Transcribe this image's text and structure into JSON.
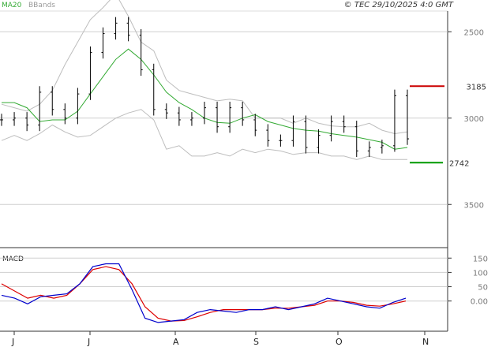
{
  "header": {
    "legend": [
      {
        "label": "MA20",
        "color": "#33aa33"
      },
      {
        "label": "BBands",
        "color": "#bdbdbd"
      }
    ],
    "copyright": "© TEC 29/10/2025 4:0 GMT"
  },
  "colors": {
    "price": "#000000",
    "ma20": "#33aa33",
    "bbands": "#bdbdbd",
    "resistance": "#cc0000",
    "support": "#009900",
    "macd": "#0000cc",
    "signal": "#dd0000",
    "axis": "#333333",
    "grid": "#cfcfcf"
  },
  "price_panel": {
    "yticks": [
      "3500",
      "3000",
      "2500"
    ],
    "resistance_label": "3185",
    "support_label": "2742"
  },
  "macd_panel": {
    "title": "MACD",
    "yticks": [
      "150",
      "100",
      "50",
      "0.00"
    ]
  },
  "months": [
    "J",
    "J",
    "A",
    "S",
    "O",
    "N"
  ],
  "chart_data": [
    {
      "type": "line",
      "title": "",
      "xlabel": "",
      "ylabel": "",
      "ylim": [
        2250,
        3620
      ],
      "x_labels": [
        "J",
        "J",
        "A",
        "S",
        "O",
        "N"
      ],
      "yticks": [
        2500,
        3000,
        3500
      ],
      "grid": true,
      "legend": [
        "MA20",
        "BBands"
      ],
      "levels": [
        {
          "label": "3185",
          "value": 3185
        },
        {
          "label": "2742",
          "value": 2742
        }
      ],
      "series": [
        {
          "name": "MA20",
          "values": [
            3090,
            3090,
            3060,
            2980,
            2990,
            2990,
            3040,
            3140,
            3240,
            3340,
            3400,
            3340,
            3250,
            3150,
            3090,
            3050,
            3000,
            2975,
            2970,
            3000,
            3020,
            2980,
            2960,
            2940,
            2930,
            2925,
            2910,
            2900,
            2890,
            2875,
            2860,
            2820,
            2830
          ]
        },
        {
          "name": "BBands",
          "values": [
            3080,
            3060,
            3040,
            3080,
            3160,
            3310,
            3440,
            3570,
            3640,
            3720,
            3590,
            3440,
            3390,
            3220,
            3160,
            3140,
            3120,
            3100,
            3110,
            3100,
            3000,
            3000,
            3000,
            2970,
            3000,
            2970,
            2955,
            2950,
            2950,
            2970,
            2930,
            2910,
            2920
          ]
        },
        {
          "name": "BBands",
          "values": [
            2870,
            2900,
            2870,
            2910,
            2960,
            2920,
            2890,
            2900,
            2950,
            3000,
            3030,
            3050,
            2990,
            2820,
            2840,
            2780,
            2780,
            2800,
            2780,
            2820,
            2800,
            2820,
            2810,
            2790,
            2800,
            2800,
            2780,
            2780,
            2760,
            2780,
            2760,
            2760,
            2760
          ]
        },
        {
          "name": "Price",
          "values": [
            2990,
            3000,
            2960,
            3150,
            3050,
            3000,
            3140,
            3380,
            3490,
            3550,
            3480,
            3280,
            3050,
            3030,
            2990,
            3000,
            3060,
            2950,
            3060,
            2990,
            2930,
            2870,
            2870,
            2980,
            2830,
            2900,
            2980,
            2950,
            2810,
            2830,
            2840,
            3130,
            2880
          ]
        }
      ]
    },
    {
      "type": "line",
      "title": "MACD",
      "xlabel": "",
      "ylabel": "",
      "ylim": [
        -100,
        170
      ],
      "yticks": [
        150,
        100,
        50,
        0
      ],
      "series": [
        {
          "name": "",
          "values": [
            20,
            10,
            -10,
            15,
            20,
            25,
            60,
            120,
            130,
            130,
            40,
            -60,
            -75,
            -70,
            -65,
            -40,
            -30,
            -35,
            -40,
            -30,
            -30,
            -20,
            -30,
            -20,
            -10,
            10,
            0,
            -10,
            -20,
            -25,
            -5,
            10
          ]
        },
        {
          "name": "",
          "values": [
            60,
            35,
            10,
            20,
            10,
            20,
            60,
            110,
            120,
            110,
            60,
            -20,
            -60,
            -70,
            -68,
            -55,
            -40,
            -30,
            -30,
            -30,
            -30,
            -25,
            -25,
            -20,
            -15,
            0,
            0,
            -5,
            -15,
            -18,
            -10,
            0
          ]
        }
      ]
    }
  ]
}
